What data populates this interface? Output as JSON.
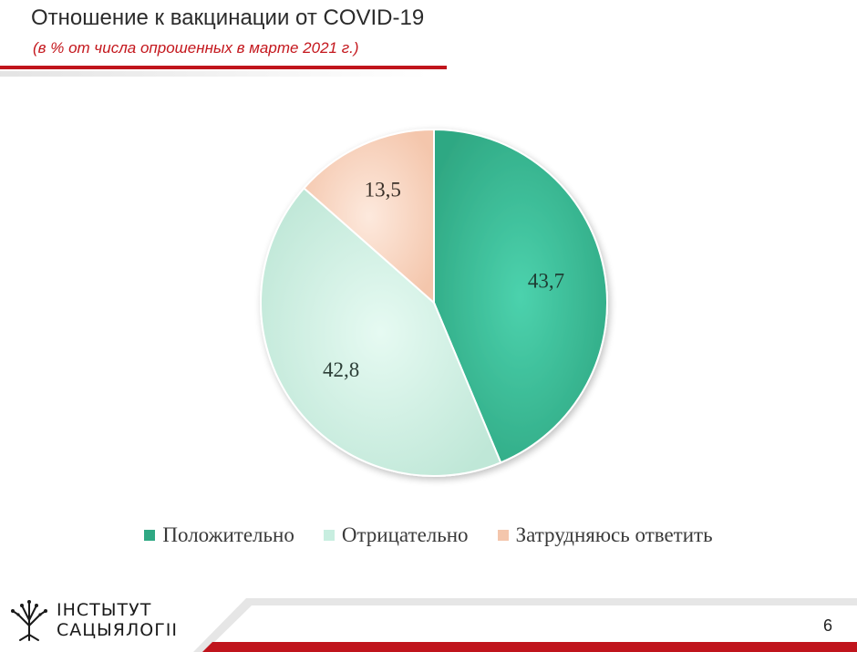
{
  "header": {
    "title": "Отношение к вакцинации от COVID-19",
    "subtitle": "(в % от числа опрошенных в марте 2021 г.)"
  },
  "chart_data": {
    "type": "pie",
    "title": "",
    "slices": [
      {
        "label": "Положительно",
        "value": 43.7,
        "display": "43,7",
        "color": "#3fbf9a"
      },
      {
        "label": "Отрицательно",
        "value": 42.8,
        "display": "42,8",
        "color": "#c8eee0"
      },
      {
        "label": "Затрудняюсь ответить",
        "value": 13.5,
        "display": "13,5",
        "color": "#f8d4c0"
      }
    ],
    "start_angle": "12 o'clock",
    "direction": "clockwise",
    "legend_position": "bottom"
  },
  "footer": {
    "logo_line1": "ІНСТЫТУТ",
    "logo_line2": "САЦЫЯЛОГІІ",
    "logo_icon": "tree-logo-icon",
    "page_number": "6",
    "accent_color": "#c0141c"
  }
}
